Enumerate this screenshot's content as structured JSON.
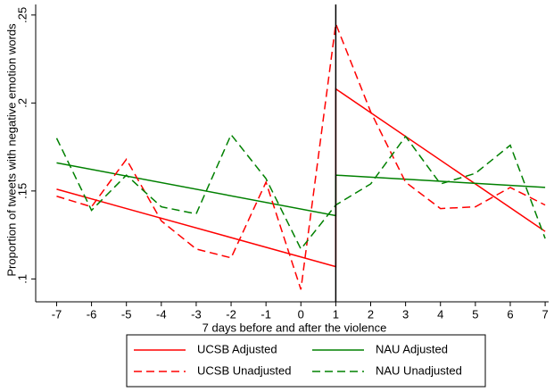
{
  "chart_data": {
    "type": "line",
    "x_label": "7 days before and after the violence",
    "y_label": "Proportion of tweets with negative emotion words",
    "xlim": [
      -7.6,
      7.1
    ],
    "xticks": [
      -7,
      -6,
      -5,
      -4,
      -3,
      -2,
      -1,
      0,
      1,
      2,
      3,
      4,
      5,
      6,
      7
    ],
    "ylim": [
      0.087,
      0.256
    ],
    "yticks": [
      {
        "value": 0.1,
        "label": ".1"
      },
      {
        "value": 0.15,
        "label": ".15"
      },
      {
        "value": 0.2,
        "label": ".2"
      },
      {
        "value": 0.25,
        "label": ".25"
      }
    ],
    "vline": 1,
    "series": [
      {
        "name": "UCSB Adjusted",
        "color": "#ff0000",
        "dash": false,
        "x": [
          -7,
          1,
          1,
          7
        ],
        "values": [
          0.151,
          0.107,
          0.208,
          0.127
        ]
      },
      {
        "name": "NAU Adjusted",
        "color": "#008000",
        "dash": false,
        "x": [
          -7,
          1,
          1,
          7
        ],
        "values": [
          0.166,
          0.136,
          0.159,
          0.152
        ]
      },
      {
        "name": "UCSB Unadjusted",
        "color": "#ff0000",
        "dash": true,
        "x": [
          -7,
          -6,
          -5,
          -4,
          -3,
          -2,
          -1,
          0,
          1,
          2,
          3,
          4,
          5,
          6,
          7
        ],
        "values": [
          0.147,
          0.141,
          0.168,
          0.133,
          0.117,
          0.112,
          0.155,
          0.094,
          0.245,
          0.195,
          0.155,
          0.14,
          0.141,
          0.152,
          0.142
        ]
      },
      {
        "name": "NAU Unadjusted",
        "color": "#008000",
        "dash": true,
        "x": [
          -7,
          -6,
          -5,
          -4,
          -3,
          -2,
          -1,
          0,
          1,
          2,
          3,
          4,
          5,
          6,
          7
        ],
        "values": [
          0.18,
          0.139,
          0.159,
          0.141,
          0.137,
          0.182,
          0.157,
          0.117,
          0.142,
          0.154,
          0.181,
          0.154,
          0.16,
          0.176,
          0.123
        ]
      }
    ]
  }
}
